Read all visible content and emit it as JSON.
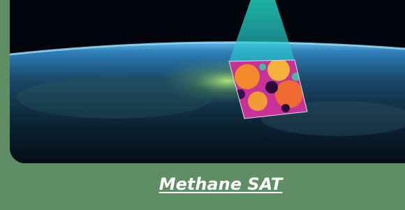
{
  "caption": "Methane SAT"
}
